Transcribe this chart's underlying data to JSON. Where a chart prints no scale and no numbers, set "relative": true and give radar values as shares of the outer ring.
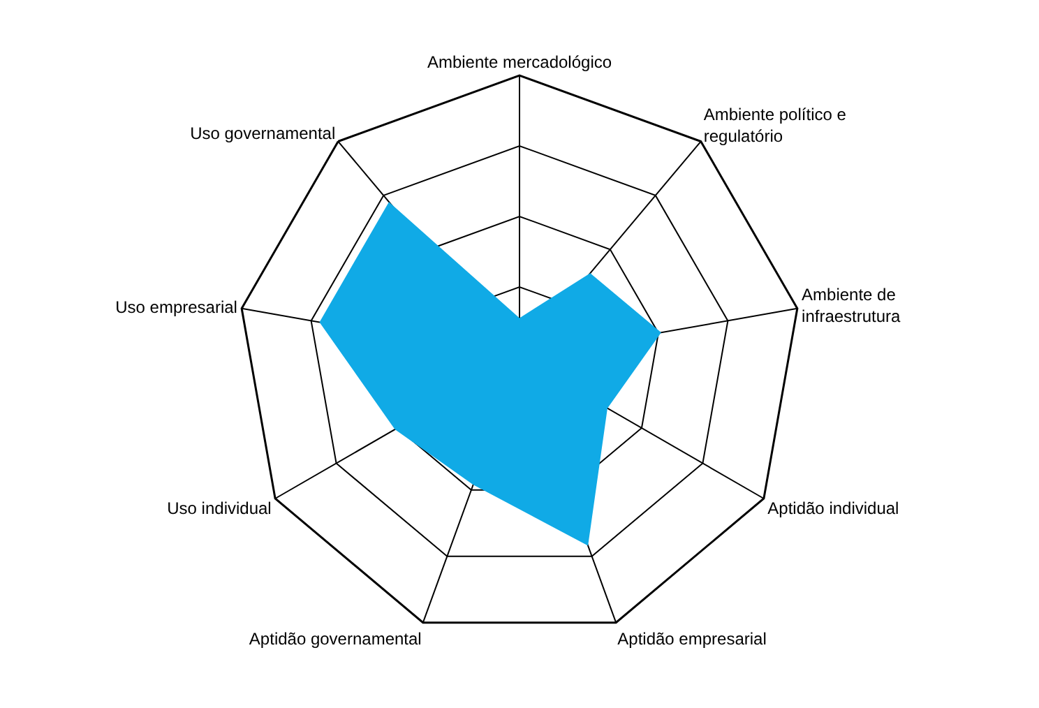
{
  "chart_data": {
    "type": "radar",
    "relative": true,
    "categories": [
      "Ambiente mercadológico",
      "Ambiente político e regulatório",
      "Ambiente de infraestrutura",
      "Aptidão individual",
      "Aptidão empresarial",
      "Aptidão governamental",
      "Uso individual",
      "Uso empresarial",
      "Uso governamental"
    ],
    "series": [
      {
        "color": "#10aae6",
        "values": [
          0.14,
          0.39,
          0.51,
          0.36,
          0.71,
          0.48,
          0.51,
          0.72,
          0.72
        ]
      }
    ],
    "grid": true
  }
}
